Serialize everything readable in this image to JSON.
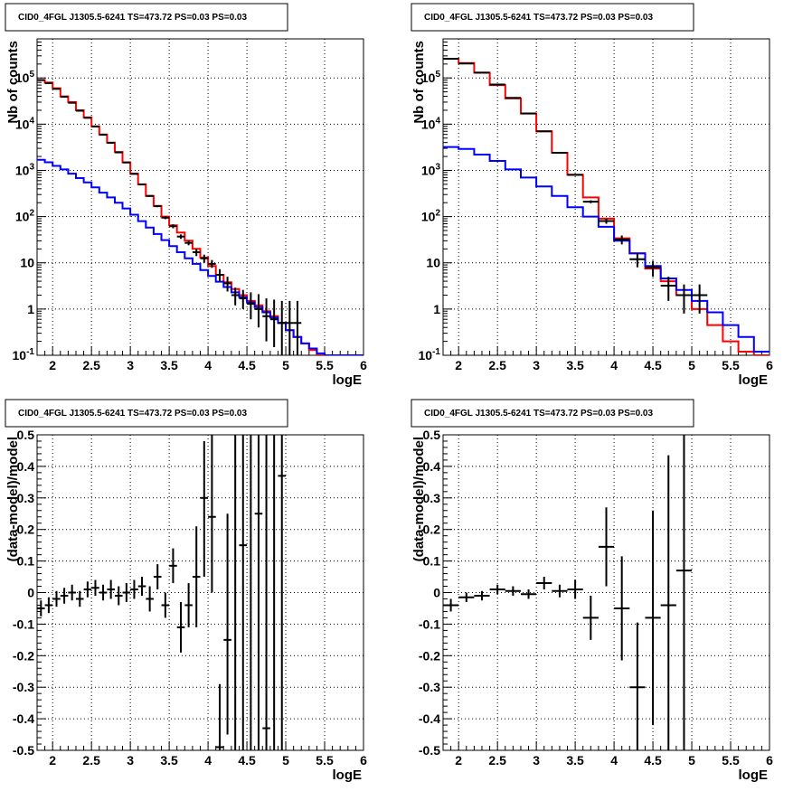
{
  "colors": {
    "model": "#ff0000",
    "component": "#0000ff",
    "data": "#000000",
    "grid": "#000000",
    "background": "#ffffff"
  },
  "chart_data": [
    {
      "id": "tl",
      "type": "line",
      "title": "CID0_4FGL J1305.5-6241 TS=473.72 PS=0.03 PS=0.03",
      "xlabel": "logE",
      "ylabel": "Nb of counts",
      "xlim": [
        1.8,
        6.0
      ],
      "ylim": [
        0.1,
        700000
      ],
      "yscale": "log",
      "grid": true,
      "x_ticks": [
        2,
        2.5,
        3,
        3.5,
        4,
        4.5,
        5,
        5.5,
        6
      ],
      "x_tick_labels": [
        "2",
        "2.5",
        "3",
        "3.5",
        "4",
        "4.5",
        "5",
        "5.5",
        "6"
      ],
      "y_ticks": [
        0.1,
        1,
        10,
        100,
        1000,
        10000,
        100000
      ],
      "y_tick_labels": [
        "10^-1",
        "1",
        "10",
        "10^2",
        "10^3",
        "10^4",
        "10^5"
      ],
      "series": [
        {
          "kind": "step",
          "color": "#ff0000",
          "x_edges": [
            1.8,
            1.9,
            2.0,
            2.1,
            2.2,
            2.3,
            2.4,
            2.5,
            2.6,
            2.7,
            2.8,
            2.9,
            3.0,
            3.1,
            3.2,
            3.3,
            3.4,
            3.5,
            3.6,
            3.7,
            3.8,
            3.9,
            4.0,
            4.1,
            4.2,
            4.3,
            4.4,
            4.5,
            4.6,
            4.7,
            4.8,
            4.9,
            5.0,
            5.1,
            5.2,
            5.3,
            5.4,
            5.5,
            5.6,
            5.7,
            5.8,
            5.9,
            6.0
          ],
          "values": [
            90000,
            80000,
            60000,
            40000,
            30000,
            20000,
            14000,
            9000,
            6000,
            4000,
            2500,
            1500,
            850,
            500,
            280,
            170,
            100,
            65,
            45,
            30,
            20,
            13,
            8.5,
            5.5,
            3.8,
            2.7,
            2.0,
            1.5,
            1.2,
            0.9,
            0.7,
            0.5,
            0.35,
            0.25,
            0.18,
            0.13,
            0.1,
            0.1,
            0.1,
            0.1,
            0.1,
            0.1
          ]
        },
        {
          "kind": "step",
          "color": "#0000ff",
          "x_edges": [
            1.8,
            1.9,
            2.0,
            2.1,
            2.2,
            2.3,
            2.4,
            2.5,
            2.6,
            2.7,
            2.8,
            2.9,
            3.0,
            3.1,
            3.2,
            3.3,
            3.4,
            3.5,
            3.6,
            3.7,
            3.8,
            3.9,
            4.0,
            4.1,
            4.2,
            4.3,
            4.4,
            4.5,
            4.6,
            4.7,
            4.8,
            4.9,
            5.0,
            5.1,
            5.2,
            5.3,
            5.4,
            5.5,
            5.6,
            5.7,
            5.8,
            5.9,
            6.0
          ],
          "values": [
            1700,
            1500,
            1250,
            1050,
            850,
            680,
            550,
            430,
            330,
            260,
            200,
            150,
            110,
            80,
            58,
            42,
            31,
            23,
            17,
            12.5,
            9.5,
            7,
            5.2,
            3.9,
            3.0,
            2.3,
            1.8,
            1.4,
            1.1,
            0.85,
            0.65,
            0.5,
            0.35,
            0.25,
            0.18,
            0.14,
            0.11,
            0.1,
            0.1,
            0.1,
            0.1,
            0.1
          ]
        },
        {
          "kind": "errorbar",
          "color": "#000000",
          "x_half_width": 0.05,
          "x": [
            1.85,
            1.95,
            2.05,
            2.15,
            2.25,
            2.35,
            2.45,
            2.55,
            2.65,
            2.75,
            2.85,
            2.95,
            3.05,
            3.15,
            3.25,
            3.35,
            3.45,
            3.55,
            3.65,
            3.75,
            3.85,
            3.95,
            4.05,
            4.15,
            4.25,
            4.35,
            4.45,
            4.55,
            4.65,
            4.75,
            4.85,
            4.95,
            5.05,
            5.15
          ],
          "y": [
            90000,
            77000,
            58000,
            39000,
            29000,
            19500,
            13700,
            8900,
            5900,
            3950,
            2450,
            1480,
            840,
            495,
            280,
            168,
            95,
            62,
            37,
            27,
            17,
            12.5,
            9.5,
            5.5,
            3.6,
            2.0,
            1.7,
            1.3,
            1.0,
            0.7,
            0.6,
            0.5,
            0.5,
            0.5
          ],
          "y_low": [
            89000,
            76000,
            57000,
            38600,
            28700,
            19300,
            13500,
            8800,
            5800,
            3900,
            2400,
            1450,
            820,
            480,
            270,
            160,
            88,
            56,
            33,
            24,
            14,
            10,
            7.8,
            4,
            2.4,
            1.2,
            1.0,
            0.6,
            0.4,
            0.2,
            0.15,
            0.1,
            0.1,
            0.1
          ],
          "y_high": [
            91000,
            78000,
            59000,
            39400,
            29300,
            19700,
            13900,
            9000,
            6000,
            4000,
            2500,
            1510,
            860,
            510,
            290,
            176,
            102,
            68,
            41,
            30,
            20,
            15,
            11.5,
            7.3,
            5,
            2.9,
            2.6,
            2.3,
            2.1,
            1.7,
            1.6,
            1.5,
            1.5,
            1.5
          ]
        }
      ]
    },
    {
      "id": "tr",
      "type": "line",
      "title": "CID0_4FGL J1305.5-6241 TS=473.72 PS=0.03 PS=0.03",
      "xlabel": "logE",
      "ylabel": "Nb of counts",
      "xlim": [
        1.8,
        6.0
      ],
      "ylim": [
        0.1,
        700000
      ],
      "yscale": "log",
      "grid": true,
      "x_ticks": [
        2,
        2.5,
        3,
        3.5,
        4,
        4.5,
        5,
        5.5,
        6
      ],
      "x_tick_labels": [
        "2",
        "2.5",
        "3",
        "3.5",
        "4",
        "4.5",
        "5",
        "5.5",
        "6"
      ],
      "y_ticks": [
        0.1,
        1,
        10,
        100,
        1000,
        10000,
        100000
      ],
      "y_tick_labels": [
        "10^-1",
        "1",
        "10",
        "10^2",
        "10^3",
        "10^4",
        "10^5"
      ],
      "series": [
        {
          "kind": "step",
          "color": "#ff0000",
          "x_edges": [
            1.8,
            2.0,
            2.2,
            2.4,
            2.6,
            2.8,
            3.0,
            3.2,
            3.4,
            3.6,
            3.8,
            4.0,
            4.2,
            4.4,
            4.6,
            4.8,
            5.0,
            5.2,
            5.4,
            5.6,
            5.8,
            6.0
          ],
          "values": [
            260000,
            210000,
            130000,
            70000,
            36000,
            17000,
            7000,
            2400,
            800,
            260,
            90,
            34,
            16,
            7.5,
            4,
            2,
            1,
            0.45,
            0.2,
            0.12,
            0.1
          ]
        },
        {
          "kind": "step",
          "color": "#0000ff",
          "x_edges": [
            1.8,
            2.0,
            2.2,
            2.4,
            2.6,
            2.8,
            3.0,
            3.2,
            3.4,
            3.6,
            3.8,
            4.0,
            4.2,
            4.4,
            4.6,
            4.8,
            5.0,
            5.2,
            5.4,
            5.6,
            5.8,
            6.0
          ],
          "values": [
            3200,
            2900,
            2200,
            1600,
            1050,
            700,
            450,
            280,
            160,
            100,
            60,
            30,
            16,
            8.5,
            4.6,
            2.6,
            1.5,
            0.85,
            0.45,
            0.25,
            0.12
          ]
        },
        {
          "kind": "errorbar",
          "color": "#000000",
          "x_half_width": 0.1,
          "x": [
            1.9,
            2.1,
            2.3,
            2.5,
            2.7,
            2.9,
            3.1,
            3.3,
            3.5,
            3.7,
            3.9,
            4.1,
            4.3,
            4.5,
            4.7,
            4.9,
            5.1
          ],
          "y": [
            260000,
            205000,
            130000,
            72000,
            37000,
            17000,
            7000,
            2400,
            800,
            210,
            80,
            32,
            12,
            8,
            3.2,
            2,
            2
          ],
          "y_low": [
            258000,
            203000,
            129000,
            71000,
            36500,
            16800,
            6900,
            2350,
            770,
            195,
            70,
            25,
            8,
            5,
            1.5,
            0.8,
            0.8
          ],
          "y_high": [
            262000,
            207000,
            131000,
            73000,
            37500,
            17200,
            7100,
            2450,
            830,
            225,
            90,
            39,
            16,
            11,
            5,
            3.4,
            3.4
          ]
        }
      ]
    },
    {
      "id": "bl",
      "type": "scatter",
      "title": "CID0_4FGL J1305.5-6241 TS=473.72 PS=0.03 PS=0.03",
      "xlabel": "logE",
      "ylabel": "(data-model)/model",
      "xlim": [
        1.8,
        6.0
      ],
      "ylim": [
        -0.5,
        0.5
      ],
      "yscale": "linear",
      "grid": true,
      "x_ticks": [
        2,
        2.5,
        3,
        3.5,
        4,
        4.5,
        5,
        5.5,
        6
      ],
      "x_tick_labels": [
        "2",
        "2.5",
        "3",
        "3.5",
        "4",
        "4.5",
        "5",
        "5.5",
        "6"
      ],
      "y_ticks": [
        -0.5,
        -0.4,
        -0.3,
        -0.2,
        -0.1,
        0,
        0.1,
        0.2,
        0.3,
        0.4,
        0.5
      ],
      "y_tick_labels": [
        "-0.5",
        "-0.4",
        "-0.3",
        "-0.2",
        "-0.1",
        "0",
        "0.1",
        "0.2",
        "0.3",
        "0.4",
        "0.5"
      ],
      "series": [
        {
          "kind": "errorbar",
          "color": "#000000",
          "x_half_width": 0.05,
          "x": [
            1.85,
            1.95,
            2.05,
            2.15,
            2.25,
            2.35,
            2.45,
            2.55,
            2.65,
            2.75,
            2.85,
            2.95,
            3.05,
            3.15,
            3.25,
            3.35,
            3.45,
            3.55,
            3.65,
            3.75,
            3.85,
            3.95,
            4.05,
            4.15,
            4.25,
            4.35,
            4.45,
            4.55,
            4.65,
            4.75,
            4.85,
            4.95
          ],
          "y": [
            -0.05,
            -0.04,
            -0.02,
            -0.01,
            0.0,
            -0.02,
            0.01,
            0.015,
            0.0,
            0.01,
            -0.01,
            0.0,
            0.01,
            0.02,
            -0.02,
            0.05,
            -0.04,
            0.085,
            -0.11,
            -0.04,
            0.05,
            0.3,
            0.24,
            -0.49,
            -0.15,
            null,
            0.15,
            null,
            0.25,
            -0.43,
            null,
            0.37
          ],
          "y_low": [
            -0.075,
            -0.065,
            -0.045,
            -0.035,
            -0.025,
            -0.045,
            -0.015,
            -0.01,
            -0.025,
            -0.02,
            -0.04,
            -0.03,
            -0.02,
            -0.01,
            -0.06,
            0.01,
            -0.08,
            0.03,
            -0.19,
            -0.11,
            -0.11,
            0.05,
            0.0,
            -0.5,
            -0.45,
            -0.5,
            -0.5,
            -0.5,
            -0.5,
            -0.5,
            -0.5,
            -0.5
          ],
          "y_high": [
            -0.025,
            -0.015,
            0.005,
            0.015,
            0.025,
            0.005,
            0.035,
            0.04,
            0.025,
            0.04,
            0.02,
            0.03,
            0.04,
            0.05,
            0.02,
            0.09,
            0.0,
            0.14,
            -0.03,
            0.03,
            0.21,
            0.48,
            0.5,
            -0.29,
            0.25,
            0.5,
            0.5,
            0.5,
            0.5,
            0.5,
            0.5,
            0.5
          ]
        }
      ]
    },
    {
      "id": "br",
      "type": "scatter",
      "title": "CID0_4FGL J1305.5-6241 TS=473.72 PS=0.03 PS=0.03",
      "xlabel": "logE",
      "ylabel": "(data-model)/model",
      "xlim": [
        1.8,
        6.0
      ],
      "ylim": [
        -0.5,
        0.5
      ],
      "yscale": "linear",
      "grid": true,
      "x_ticks": [
        2,
        2.5,
        3,
        3.5,
        4,
        4.5,
        5,
        5.5,
        6
      ],
      "x_tick_labels": [
        "2",
        "2.5",
        "3",
        "3.5",
        "4",
        "4.5",
        "5",
        "5.5",
        "6"
      ],
      "y_ticks": [
        -0.5,
        -0.4,
        -0.3,
        -0.2,
        -0.1,
        0,
        0.1,
        0.2,
        0.3,
        0.4,
        0.5
      ],
      "y_tick_labels": [
        "-0.5",
        "-0.4",
        "-0.3",
        "-0.2",
        "-0.1",
        "0",
        "0.1",
        "0.2",
        "0.3",
        "0.4",
        "0.5"
      ],
      "series": [
        {
          "kind": "errorbar",
          "color": "#000000",
          "x_half_width": 0.1,
          "x": [
            1.9,
            2.1,
            2.3,
            2.5,
            2.7,
            2.9,
            3.1,
            3.3,
            3.5,
            3.7,
            3.9,
            4.1,
            4.3,
            4.5,
            4.7,
            4.9
          ],
          "y": [
            -0.04,
            -0.015,
            -0.01,
            0.01,
            0.005,
            -0.005,
            0.03,
            0.005,
            0.01,
            -0.08,
            0.145,
            -0.05,
            -0.3,
            -0.08,
            -0.04,
            0.07
          ],
          "y_low": [
            -0.06,
            -0.03,
            -0.025,
            -0.005,
            -0.01,
            -0.02,
            0.01,
            -0.015,
            -0.02,
            -0.15,
            0.02,
            -0.215,
            -0.5,
            -0.42,
            -0.5,
            -0.5
          ],
          "y_high": [
            -0.02,
            0.0,
            0.005,
            0.025,
            0.02,
            0.01,
            0.05,
            0.025,
            0.04,
            -0.01,
            0.27,
            0.115,
            -0.095,
            0.26,
            0.435,
            0.5
          ]
        }
      ]
    }
  ]
}
